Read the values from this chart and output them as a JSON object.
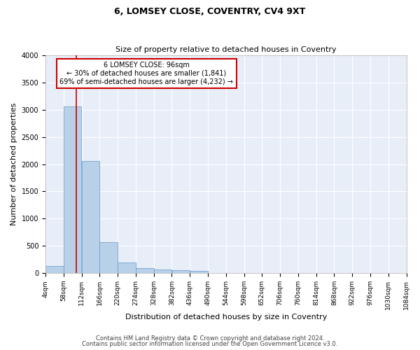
{
  "title": "6, LOMSEY CLOSE, COVENTRY, CV4 9XT",
  "subtitle": "Size of property relative to detached houses in Coventry",
  "xlabel": "Distribution of detached houses by size in Coventry",
  "ylabel": "Number of detached properties",
  "bar_color": "#b8d0e8",
  "bar_edge_color": "#6699cc",
  "background_color": "#e8eef8",
  "grid_color": "#ffffff",
  "bins": [
    4,
    58,
    112,
    166,
    220,
    274,
    328,
    382,
    436,
    490,
    544,
    598,
    652,
    706,
    760,
    814,
    868,
    922,
    976,
    1030,
    1084
  ],
  "bar_values": [
    130,
    3060,
    2060,
    565,
    200,
    85,
    65,
    50,
    45,
    0,
    0,
    0,
    0,
    0,
    0,
    0,
    0,
    0,
    0,
    0
  ],
  "tick_labels": [
    "4sqm",
    "58sqm",
    "112sqm",
    "166sqm",
    "220sqm",
    "274sqm",
    "328sqm",
    "382sqm",
    "436sqm",
    "490sqm",
    "544sqm",
    "598sqm",
    "652sqm",
    "706sqm",
    "760sqm",
    "814sqm",
    "868sqm",
    "922sqm",
    "976sqm",
    "1030sqm",
    "1084sqm"
  ],
  "property_size": 96,
  "annotation_text": "6 LOMSEY CLOSE: 96sqm\n← 30% of detached houses are smaller (1,841)\n69% of semi-detached houses are larger (4,232) →",
  "annotation_box_color": "#cc0000",
  "vline_color": "#cc0000",
  "ylim": [
    0,
    4000
  ],
  "yticks": [
    0,
    500,
    1000,
    1500,
    2000,
    2500,
    3000,
    3500,
    4000
  ],
  "footer_line1": "Contains HM Land Registry data © Crown copyright and database right 2024.",
  "footer_line2": "Contains public sector information licensed under the Open Government Licence v3.0.",
  "title_fontsize": 9,
  "subtitle_fontsize": 8,
  "xlabel_fontsize": 8,
  "ylabel_fontsize": 8,
  "tick_fontsize": 6.5,
  "ytick_fontsize": 7,
  "footer_fontsize": 6,
  "annotation_fontsize": 7
}
